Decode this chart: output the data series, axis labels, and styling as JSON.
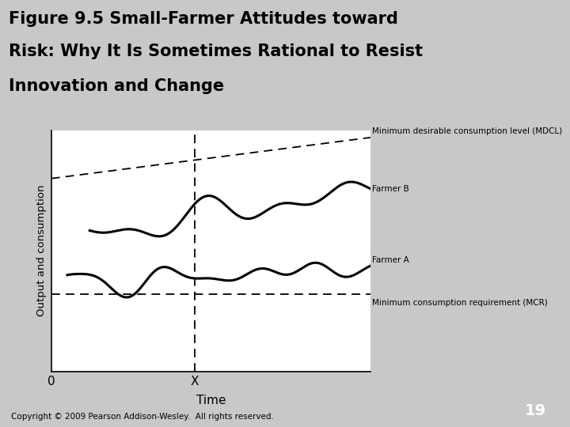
{
  "title_line1": "Figure 9.5 Small-Farmer Attitudes toward",
  "title_line2": "Risk: Why It Is Sometimes Rational to Resist",
  "title_line3": "Innovation and Change",
  "header_bg_color": "#1c4a7a",
  "chart_bg_color": "#d8d8d8",
  "xlabel": "Time",
  "ylabel": "Output and consumption",
  "copyright": "Copyright © 2009 Pearson Addison-Wesley.  All rights reserved.",
  "page_num": "19",
  "page_num_bg": "#1c4a7a",
  "ann_mdcl": "Minimum desirable consumption level (MDCL)",
  "ann_farmerB": "Farmer B",
  "ann_farmerA": "Farmer A",
  "ann_mcr": "Minimum consumption requirement (MCR)"
}
